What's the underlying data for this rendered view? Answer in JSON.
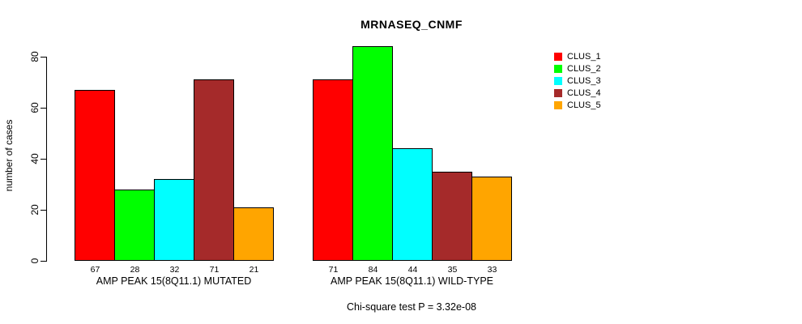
{
  "chart_data": {
    "type": "bar",
    "title": "MRNASEQ_CNMF",
    "ylabel": "number of cases",
    "xlabel": "",
    "categories": [
      "AMP PEAK 15(8Q11.1) MUTATED",
      "AMP PEAK 15(8Q11.1) WILD-TYPE"
    ],
    "series": [
      {
        "name": "CLUS_1",
        "color": "#FF0000",
        "values": [
          67,
          71
        ]
      },
      {
        "name": "CLUS_2",
        "color": "#00FF00",
        "values": [
          28,
          84
        ]
      },
      {
        "name": "CLUS_3",
        "color": "#00FFFF",
        "values": [
          32,
          44
        ]
      },
      {
        "name": "CLUS_4",
        "color": "#A52A2A",
        "values": [
          71,
          35
        ]
      },
      {
        "name": "CLUS_5",
        "color": "#FFA500",
        "values": [
          21,
          33
        ]
      }
    ],
    "yticks": [
      0,
      20,
      40,
      60,
      80
    ],
    "ylim": [
      0,
      84
    ],
    "grid": false,
    "bar_value_labels": true,
    "legend_position": "right",
    "annotation": "Chi-square test P = 3.32e-08"
  },
  "colors": {
    "background": "#FFFFFF",
    "axis": "#000000",
    "text": "#000000"
  }
}
